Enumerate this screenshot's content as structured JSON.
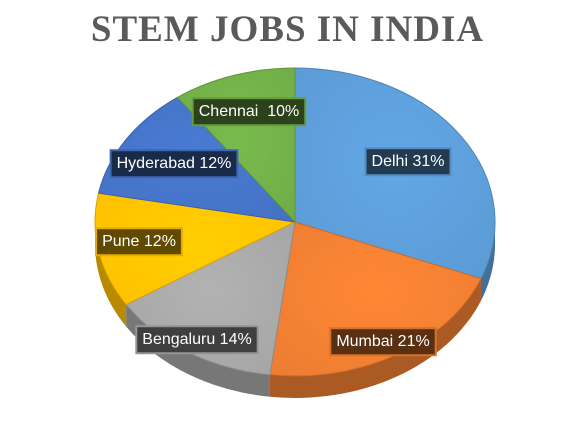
{
  "chart_data": {
    "type": "pie",
    "title": "STEM JOBS IN INDIA",
    "slices": [
      {
        "label": "Delhi 31%",
        "name": "Delhi",
        "value": 31,
        "color": "#5b9bd5"
      },
      {
        "label": "Mumbai 21%",
        "name": "Mumbai",
        "value": 21,
        "color": "#ed7d31"
      },
      {
        "label": "Bengaluru 14%",
        "name": "Bengaluru",
        "value": 14,
        "color": "#a5a5a5"
      },
      {
        "label": "Pune 12%",
        "name": "Pune",
        "value": 12,
        "color": "#ffc000"
      },
      {
        "label": "Hyderabad 12%",
        "name": "Hyderabad",
        "value": 12,
        "color": "#4472c4"
      },
      {
        "label": "Chennai  10%",
        "name": "Chennai",
        "value": 10,
        "color": "#70ad47"
      }
    ],
    "legend": "none",
    "style": "3d"
  }
}
